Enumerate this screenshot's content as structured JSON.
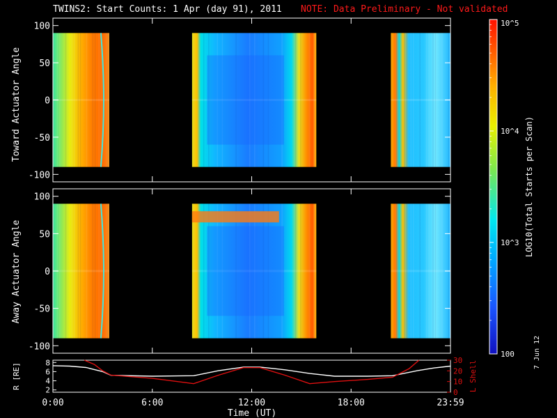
{
  "title": {
    "main": "TWINS2: Start Counts:  1 Apr (day  91), 2011",
    "note": "NOTE: Data Preliminary - Not validated"
  },
  "datestamp": "7 Jun 12",
  "colors": {
    "background": "#000000",
    "axes": "#ffffff",
    "note_text": "#ff1a1a",
    "r_line": "#ffffff",
    "l_shell_line": "#e01010"
  },
  "colorbar": {
    "label": "LOG10(Total Starts per Scan)",
    "tick_labels": [
      "10^5",
      "10^4",
      "10^3",
      "100"
    ],
    "tick_values": [
      100000,
      10000,
      1000,
      100
    ],
    "range": [
      100,
      100000
    ],
    "scale": "log",
    "colormap": "rainbow"
  },
  "chart_data": [
    {
      "type": "heatmap",
      "name": "toward",
      "ylabel": "Toward Actuator Angle",
      "ylim": [
        -110,
        110
      ],
      "yticks": [
        100,
        50,
        0,
        -50,
        -100
      ],
      "xlim": [
        0,
        24
      ],
      "data_segments_hours": [
        [
          0.0,
          3.4
        ],
        [
          8.4,
          15.9
        ],
        [
          20.4,
          24.0
        ]
      ],
      "angle_range": [
        -90,
        90
      ],
      "scale": "log"
    },
    {
      "type": "heatmap",
      "name": "away",
      "ylabel": "Away Actuator Angle",
      "ylim": [
        -110,
        110
      ],
      "yticks": [
        100,
        50,
        0,
        -50,
        -100
      ],
      "xlim": [
        0,
        24
      ],
      "data_segments_hours": [
        [
          0.0,
          3.4
        ],
        [
          8.4,
          15.9
        ],
        [
          20.4,
          24.0
        ]
      ],
      "angle_range": [
        -90,
        90
      ],
      "scale": "log"
    },
    {
      "type": "line",
      "name": "orbit",
      "xlabel": "Time (UT)",
      "x_tick_labels": [
        "0:00",
        "6:00",
        "12:00",
        "18:00",
        "23:59"
      ],
      "x_tick_values": [
        0,
        6,
        12,
        18,
        24
      ],
      "xlim": [
        0,
        24
      ],
      "left_axis": {
        "label": "R [RE]",
        "ylim": [
          1.5,
          8.5
        ],
        "ticks": [
          8,
          6,
          4,
          2
        ]
      },
      "right_axis": {
        "label": "L Shell",
        "ylim": [
          0,
          30
        ],
        "ticks": [
          30,
          20,
          10,
          0
        ]
      },
      "series": [
        {
          "name": "R [RE]",
          "axis": "left",
          "x": [
            0,
            1,
            2,
            3,
            3.5,
            6,
            8.5,
            10,
            11.5,
            12.5,
            14,
            15.5,
            17,
            19,
            20.5,
            22,
            23,
            24
          ],
          "y": [
            7.3,
            7.2,
            6.9,
            6.0,
            5.2,
            5.0,
            5.1,
            6.2,
            7.0,
            7.0,
            6.4,
            5.6,
            5.0,
            5.0,
            5.1,
            6.2,
            6.8,
            7.2
          ]
        },
        {
          "name": "L Shell",
          "axis": "right",
          "x": [
            1.9,
            2.5,
            3.0,
            3.5,
            6,
            8.5,
            10,
            11.5,
            12.5,
            14,
            15.5,
            17,
            19,
            20.5,
            21.5,
            22.1
          ],
          "y": [
            30,
            26,
            20,
            16,
            13,
            8,
            16,
            23,
            23,
            16,
            8,
            10,
            12,
            14,
            22,
            30
          ]
        }
      ]
    }
  ]
}
